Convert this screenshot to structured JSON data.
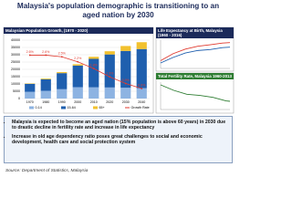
{
  "title": "Malaysia's population demographic is transitioning to an aged nation by 2030",
  "bullets": [
    "Malaysia is expected to become an aged nation (15% population is above 60 years) in 2030 due to drastic decline in fertility rate and increase in life expectancy",
    "Increase in old age dependency ratio poses great challenges to social and economic development, health care and social protection system"
  ],
  "source": "Source: Department of Statistics, Malaysia",
  "chart_data": [
    {
      "type": "bar",
      "stacked": true,
      "title": "Malaysian Population Growth, (1970 - 2020)",
      "categories": [
        "1970",
        "1980",
        "1990",
        "2000",
        "2010",
        "2020",
        "2030",
        "2040"
      ],
      "series": [
        {
          "name": "0-14",
          "color": "#8db3e2",
          "values": [
            4600,
            5300,
            6400,
            7800,
            7700,
            7600,
            7400,
            7100
          ]
        },
        {
          "name": "15-64",
          "color": "#1f5fae",
          "values": [
            5500,
            7900,
            11000,
            14800,
            19500,
            22600,
            25200,
            26800
          ]
        },
        {
          "name": "65+",
          "color": "#f2c12e",
          "values": [
            300,
            500,
            700,
            900,
            1400,
            2200,
            3400,
            4700
          ]
        },
        {
          "name": "Growth Rate",
          "color": "#e03a2f",
          "type": "line",
          "axis": "y2",
          "values": [
            2.6,
            2.6,
            2.5,
            2.2,
            1.8,
            1.3,
            0.9,
            0.6
          ],
          "value_labels": [
            "2.6%",
            "2.6%",
            "2.5%",
            "2.2%",
            "1.8%",
            "1.3%",
            "0.9%",
            "0.6%"
          ]
        }
      ],
      "ylim": [
        0,
        40000
      ],
      "yticks": [
        0,
        5000,
        10000,
        15000,
        20000,
        25000,
        30000,
        35000,
        40000
      ],
      "y2lim": [
        0,
        3.5
      ],
      "legend": "bottom"
    },
    {
      "type": "line",
      "title": "Life Expectancy at Birth, Malaysia (1960 - 2016)",
      "x": [
        1960,
        1970,
        1980,
        1990,
        2000,
        2010,
        2016
      ],
      "series": [
        {
          "color": "#1f5fae",
          "values": [
            55.8,
            61.6,
            66.4,
            69.0,
            70.0,
            72.1,
            72.6
          ]
        },
        {
          "color": "#e03a2f",
          "values": [
            58.2,
            65.6,
            70.5,
            73.5,
            75.1,
            76.9,
            77.4
          ]
        }
      ],
      "xlim": [
        1960,
        2016
      ],
      "ylim": [
        50,
        80
      ]
    },
    {
      "type": "line",
      "title": "Total Fertility Rate, Malaysia 1960-2013",
      "x": [
        1960,
        1970,
        1980,
        1990,
        2000,
        2010,
        2013
      ],
      "series": [
        {
          "color": "#2e7d32",
          "values": [
            6.3,
            4.9,
            3.9,
            3.6,
            3.1,
            2.2,
            2.1
          ]
        }
      ],
      "xlim": [
        1960,
        2013
      ],
      "ylim": [
        0,
        7
      ]
    }
  ]
}
